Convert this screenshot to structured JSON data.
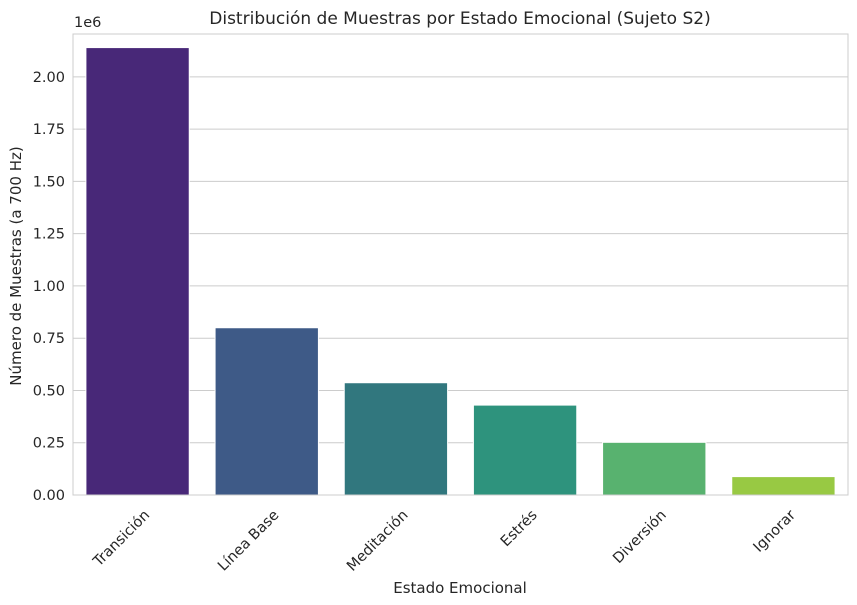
{
  "chart_data": {
    "type": "bar",
    "title": "Distribución de Muestras por Estado Emocional (Sujeto S2)",
    "xlabel": "Estado Emocional",
    "ylabel": "Número de Muestras (a 700 Hz)",
    "y_offset_label": "1e6",
    "y_scale": 1000000,
    "categories": [
      "Transición",
      "Línea Base",
      "Meditación",
      "Estrés",
      "Diversión",
      "Ignorar"
    ],
    "values": [
      2140000,
      800000,
      537000,
      430000,
      252000,
      88000
    ],
    "colors": [
      "#482878",
      "#3e5a87",
      "#31777e",
      "#2e937d",
      "#58b26f",
      "#98c943"
    ],
    "ylim": [
      0,
      2205000
    ],
    "yticks": [
      0,
      250000,
      500000,
      750000,
      1000000,
      1250000,
      1500000,
      1750000,
      2000000
    ],
    "ytick_labels": [
      "0.00",
      "0.25",
      "0.50",
      "0.75",
      "1.00",
      "1.25",
      "1.50",
      "1.75",
      "2.00"
    ],
    "grid": true,
    "grid_axis": "y"
  }
}
